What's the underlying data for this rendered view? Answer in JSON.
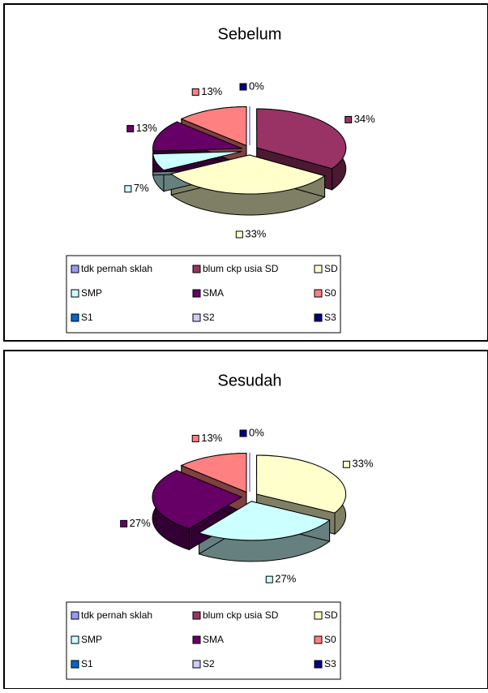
{
  "chart_data": [
    {
      "type": "pie3d",
      "title": "Sebelum",
      "categories": [
        "tdk pernah sklah",
        "blum ckp usia SD",
        "SD",
        "SMP",
        "SMA",
        "S0",
        "S1",
        "S2",
        "S3"
      ],
      "values": [
        null,
        34,
        33,
        7,
        13,
        13,
        null,
        null,
        0
      ],
      "value_labels": [
        null,
        "34%",
        "33%",
        "7%",
        "13%",
        "13%",
        null,
        null,
        "0%"
      ],
      "colors": [
        "#9999ff",
        "#993366",
        "#ffffcc",
        "#ccffff",
        "#660066",
        "#ff8080",
        "#0066cc",
        "#ccccff",
        "#000080"
      ],
      "legend": "bottom"
    },
    {
      "type": "pie3d",
      "title": "Sesudah",
      "categories": [
        "tdk pernah sklah",
        "blum ckp usia SD",
        "SD",
        "SMP",
        "SMA",
        "S0",
        "S1",
        "S2",
        "S3"
      ],
      "values": [
        null,
        null,
        33,
        27,
        27,
        13,
        null,
        null,
        0
      ],
      "value_labels": [
        null,
        null,
        "33%",
        "27%",
        "27%",
        "13%",
        null,
        null,
        "0%"
      ],
      "colors": [
        "#9999ff",
        "#993366",
        "#ffffcc",
        "#ccffff",
        "#660066",
        "#ff8080",
        "#0066cc",
        "#ccccff",
        "#000080"
      ],
      "legend": "bottom"
    }
  ]
}
